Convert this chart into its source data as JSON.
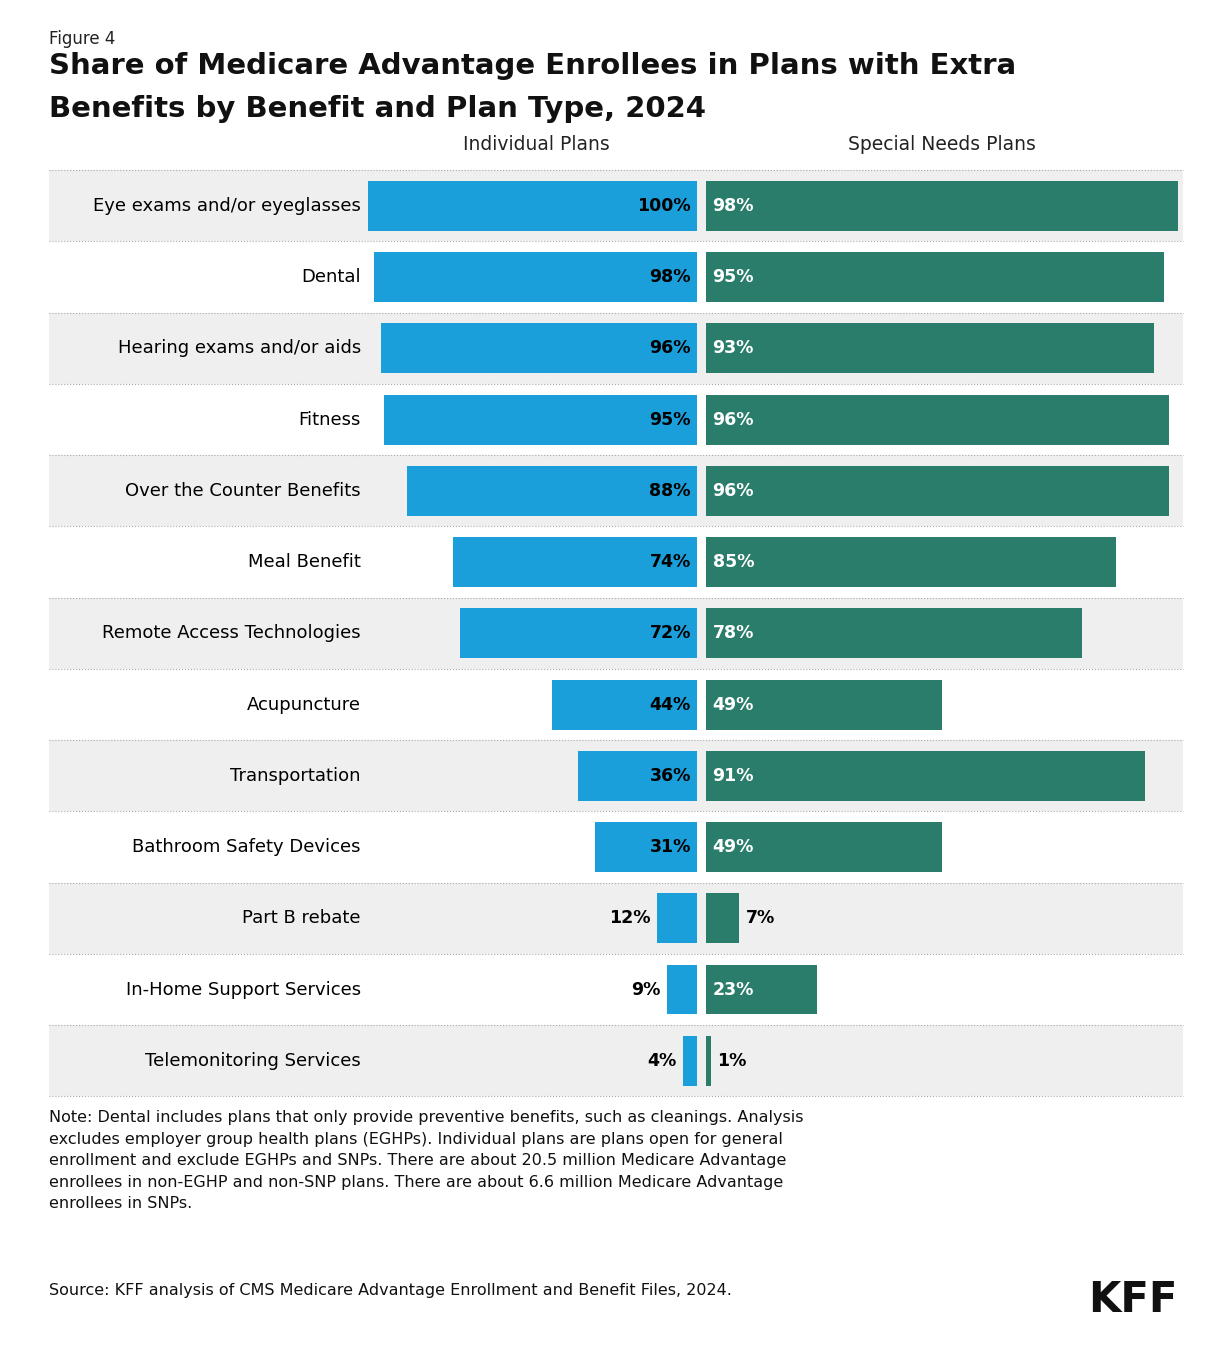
{
  "figure_label": "Figure 4",
  "title_line1": "Share of Medicare Advantage Enrollees in Plans with Extra",
  "title_line2": "Benefits by Benefit and Plan Type, 2024",
  "col1_label": "Individual Plans",
  "col2_label": "Special Needs Plans",
  "categories": [
    "Eye exams and/or eyeglasses",
    "Dental",
    "Hearing exams and/or aids",
    "Fitness",
    "Over the Counter Benefits",
    "Meal Benefit",
    "Remote Access Technologies",
    "Acupuncture",
    "Transportation",
    "Bathroom Safety Devices",
    "Part B rebate",
    "In-Home Support Services",
    "Telemonitoring Services"
  ],
  "individual_values": [
    100,
    98,
    96,
    95,
    88,
    74,
    72,
    44,
    36,
    31,
    12,
    9,
    4
  ],
  "snp_values": [
    98,
    95,
    93,
    96,
    96,
    85,
    78,
    49,
    91,
    49,
    7,
    23,
    1
  ],
  "individual_color": "#1A9FDA",
  "snp_color": "#2A7D6B",
  "bg_color_odd": "#efefef",
  "bg_color_even": "#ffffff",
  "note": "Note: Dental includes plans that only provide preventive benefits, such as cleanings. Analysis\nexcludes employer group health plans (EGHPs). Individual plans are plans open for general\nenrollment and exclude EGHPs and SNPs. There are about 20.5 million Medicare Advantage\nenrollees in non-EGHP and non-SNP plans. There are about 6.6 million Medicare Advantage\nenrollees in SNPs.",
  "source": "Source: KFF analysis of CMS Medicare Advantage Enrollment and Benefit Files, 2024.",
  "fig_width": 12.2,
  "fig_height": 13.62,
  "dpi": 100
}
